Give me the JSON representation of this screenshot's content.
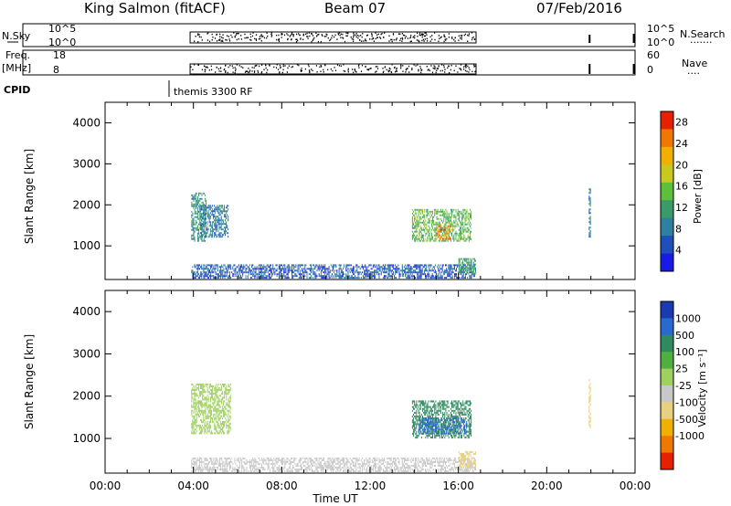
{
  "header": {
    "station": "King Salmon (fitACF)",
    "beam": "Beam 07",
    "date": "07/Feb/2016"
  },
  "param_strips": {
    "nsky_label": "N.Sky",
    "nsky_ticks": [
      "10^5",
      "10^0"
    ],
    "nsearch_label": "N.Search",
    "nsearch_ticks": [
      "10^5",
      "10^0"
    ],
    "freq_label": "Freq.",
    "freq_unit": "[MHz]",
    "freq_ticks": [
      "18",
      "8"
    ],
    "nave_label": "Nave",
    "nave_ticks": [
      "60",
      "0"
    ],
    "cpid_label": "CPID",
    "cpid_text": "themis 3300 RF"
  },
  "colors": {
    "power_scale": [
      "#1a1ae6",
      "#1f4fb8",
      "#2f7fa0",
      "#3a9a6a",
      "#5cc03a",
      "#c8c81e",
      "#f0b000",
      "#f07800",
      "#e62000"
    ],
    "velocity_scale": [
      "#1a3ab0",
      "#2a6ad0",
      "#2f8a60",
      "#4fb040",
      "#a0d060",
      "#c8c8c8",
      "#e8d080",
      "#f0b000",
      "#f07800",
      "#e62000"
    ]
  },
  "chart_data": [
    {
      "type": "heatmap",
      "title": "",
      "quantity": "Power",
      "xlabel": "",
      "ylabel": "Slant Range [km]",
      "xlim": [
        "00:00",
        "00:00"
      ],
      "ylim": [
        180,
        4500
      ],
      "x_ticks": [
        "00:00",
        "04:00",
        "08:00",
        "12:00",
        "16:00",
        "20:00",
        "00:00"
      ],
      "y_ticks": [
        1000,
        2000,
        3000,
        4000
      ],
      "colorbar": {
        "label": "Power [dB]",
        "ticks": [
          4,
          8,
          12,
          16,
          20,
          24,
          28
        ],
        "range": [
          0,
          30
        ]
      },
      "regions": [
        {
          "t_start": 3.9,
          "t_end": 4.6,
          "r_start": 1100,
          "r_end": 2300,
          "value": 10
        },
        {
          "t_start": 4.3,
          "t_end": 5.6,
          "r_start": 1200,
          "r_end": 2000,
          "value": 8
        },
        {
          "t_start": 3.9,
          "t_end": 16.8,
          "r_start": 200,
          "r_end": 550,
          "value": 6
        },
        {
          "t_start": 13.9,
          "t_end": 16.6,
          "r_start": 1100,
          "r_end": 1900,
          "value": 14
        },
        {
          "t_start": 15.0,
          "t_end": 15.7,
          "r_start": 1150,
          "r_end": 1500,
          "value": 24
        },
        {
          "t_start": 16.0,
          "t_end": 16.8,
          "r_start": 300,
          "r_end": 700,
          "value": 12
        },
        {
          "t_start": 21.9,
          "t_end": 22.0,
          "r_start": 1200,
          "r_end": 2400,
          "value": 8
        }
      ]
    },
    {
      "type": "heatmap",
      "title": "",
      "quantity": "Velocity",
      "xlabel": "Time UT",
      "ylabel": "Slant Range [km]",
      "xlim": [
        "00:00",
        "00:00"
      ],
      "ylim": [
        180,
        4500
      ],
      "x_ticks": [
        "00:00",
        "04:00",
        "08:00",
        "12:00",
        "16:00",
        "20:00",
        "00:00"
      ],
      "y_ticks": [
        1000,
        2000,
        3000,
        4000
      ],
      "colorbar": {
        "label": "Velocity [m s⁻¹]",
        "ticks": [
          1000,
          500,
          100,
          25,
          -25,
          -100,
          -500,
          -1000
        ]
      },
      "regions": [
        {
          "t_start": 3.9,
          "t_end": 5.7,
          "r_start": 1100,
          "r_end": 2300,
          "value": 0
        },
        {
          "t_start": 3.9,
          "t_end": 16.8,
          "r_start": 200,
          "r_end": 550,
          "value": -60
        },
        {
          "t_start": 13.9,
          "t_end": 16.6,
          "r_start": 1000,
          "r_end": 1900,
          "value": 300
        },
        {
          "t_start": 14.2,
          "t_end": 16.4,
          "r_start": 1100,
          "r_end": 1500,
          "value": 600
        },
        {
          "t_start": 16.0,
          "t_end": 16.8,
          "r_start": 300,
          "r_end": 700,
          "value": -200
        },
        {
          "t_start": 21.9,
          "t_end": 22.0,
          "r_start": 1200,
          "r_end": 2400,
          "value": -300
        }
      ]
    }
  ]
}
